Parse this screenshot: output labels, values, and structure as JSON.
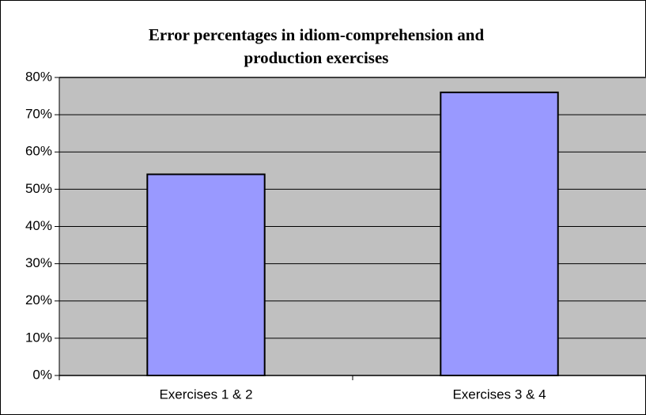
{
  "chart_data": {
    "type": "bar",
    "title": "Error percentages in idiom-comprehension and production exercises",
    "categories": [
      "Exercises 1 & 2",
      "Exercises 3 & 4"
    ],
    "values": [
      54,
      76
    ],
    "color": "#9999ff",
    "ylim": [
      0,
      80
    ],
    "yticks": [
      {
        "value": 0,
        "label": "0%"
      },
      {
        "value": 10,
        "label": "10%"
      },
      {
        "value": 20,
        "label": "20%"
      },
      {
        "value": 30,
        "label": "30%"
      },
      {
        "value": 40,
        "label": "40%"
      },
      {
        "value": 50,
        "label": "50%"
      },
      {
        "value": 60,
        "label": "60%"
      },
      {
        "value": 70,
        "label": "70%"
      },
      {
        "value": 80,
        "label": "80%"
      }
    ],
    "grid": true
  }
}
